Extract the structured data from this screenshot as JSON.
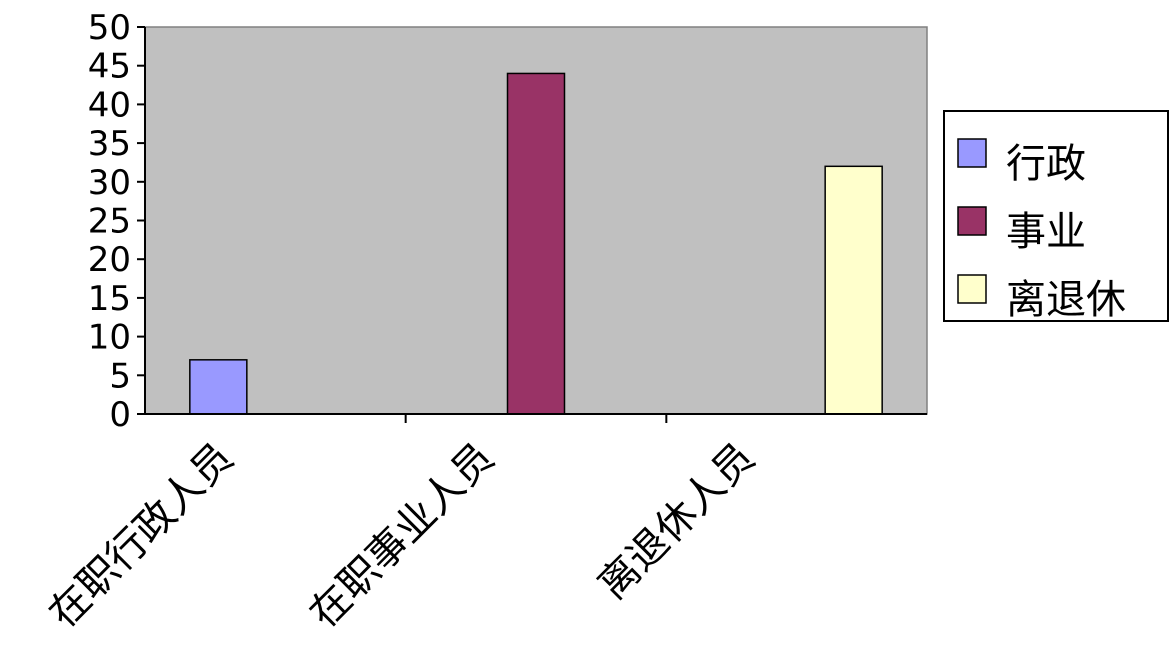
{
  "chart_data": {
    "type": "bar",
    "categories": [
      "在职行政人员",
      "在职事业人员",
      "离退休人员"
    ],
    "series": [
      {
        "name": "行政",
        "values": [
          7,
          0,
          0
        ],
        "color": "#9999ff"
      },
      {
        "name": "事业",
        "values": [
          0,
          44,
          0
        ],
        "color": "#993366"
      },
      {
        "name": "离退休",
        "values": [
          0,
          0,
          32
        ],
        "color": "#ffffcc"
      }
    ],
    "y_ticks": [
      "0",
      "5",
      "10",
      "15",
      "20",
      "25",
      "30",
      "35",
      "40",
      "45",
      "50"
    ],
    "ylim": [
      0,
      50
    ],
    "grid": false,
    "plot_background": "#c0c0c0",
    "legend_position": "right"
  }
}
